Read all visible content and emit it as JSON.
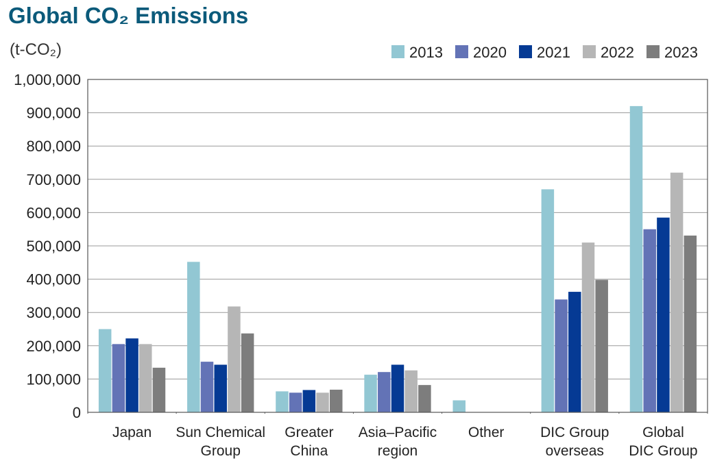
{
  "chart_data": {
    "type": "bar",
    "title": "Global CO₂ Emissions",
    "unit_label": "(t-CO₂)",
    "ylim": [
      0,
      1000000
    ],
    "yticks": [
      0,
      100000,
      200000,
      300000,
      400000,
      500000,
      600000,
      700000,
      800000,
      900000,
      1000000
    ],
    "ytick_labels": [
      "0",
      "100,000",
      "200,000",
      "300,000",
      "400,000",
      "500,000",
      "600,000",
      "700,000",
      "800,000",
      "900,000",
      "1,000,000"
    ],
    "grid": true,
    "legend_position": "top-right",
    "categories": [
      [
        "Japan"
      ],
      [
        "Sun Chemical",
        "Group"
      ],
      [
        "Greater",
        "China"
      ],
      [
        "Asia–Pacific",
        "region"
      ],
      [
        "Other"
      ],
      [
        "DIC Group",
        "overseas"
      ],
      [
        "Global",
        "DIC Group"
      ]
    ],
    "series": [
      {
        "name": "2013",
        "color": "#92c7d3",
        "values": [
          250000,
          452000,
          63000,
          113000,
          36000,
          670000,
          920000
        ]
      },
      {
        "name": "2020",
        "color": "#6373b6",
        "values": [
          205000,
          152000,
          59000,
          121000,
          0,
          339000,
          550000
        ]
      },
      {
        "name": "2021",
        "color": "#053a94",
        "values": [
          222000,
          143000,
          67000,
          143000,
          0,
          362000,
          585000
        ]
      },
      {
        "name": "2022",
        "color": "#b6b6b6",
        "values": [
          205000,
          318000,
          59000,
          126000,
          0,
          510000,
          720000
        ]
      },
      {
        "name": "2023",
        "color": "#7d7d7d",
        "values": [
          134000,
          237000,
          68000,
          82000,
          0,
          398000,
          531000
        ]
      }
    ]
  }
}
